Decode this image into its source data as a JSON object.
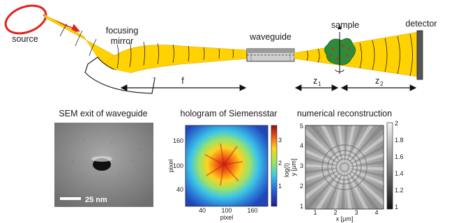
{
  "setup": {
    "labels": {
      "source": "source",
      "focusing_mirror_line1": "focusing",
      "focusing_mirror_line2": "mirror",
      "waveguide": "waveguide",
      "sample": "sample",
      "detector": "detector",
      "focal_length": "f",
      "z1": "z",
      "z1_sub": "1",
      "z2": "z",
      "z2_sub": "2"
    },
    "colors": {
      "beam": "#ffd200",
      "beam_edge": "#e0a800",
      "source_ring": "#e0231c",
      "sample": "#2e8b3a",
      "detector": "#555555"
    }
  },
  "panels": {
    "sem": {
      "title": "SEM exit of waveguide",
      "scalebar_label": "25 nm"
    },
    "hologram": {
      "title": "hologram of Siemensstar",
      "x_ticks": [
        "40",
        "100",
        "160"
      ],
      "y_ticks": [
        "40",
        "100",
        "160"
      ],
      "xlabel": "pixel",
      "ylabel": "pixel",
      "colorbar_ticks": [
        "1",
        "2",
        "3"
      ],
      "colorbar_label": "log(I)",
      "colormap": "jet"
    },
    "reconstruction": {
      "title": "numerical reconstruction",
      "x_ticks": [
        "1",
        "2",
        "3",
        "4"
      ],
      "y_ticks": [
        "1",
        "2",
        "3",
        "4",
        "5"
      ],
      "xlabel": "x [µm]",
      "ylabel": "y [µm]",
      "colorbar_ticks": [
        "2",
        "1.8",
        "1.6",
        "1.4",
        "1.2",
        "1"
      ],
      "colormap": "gray"
    }
  }
}
